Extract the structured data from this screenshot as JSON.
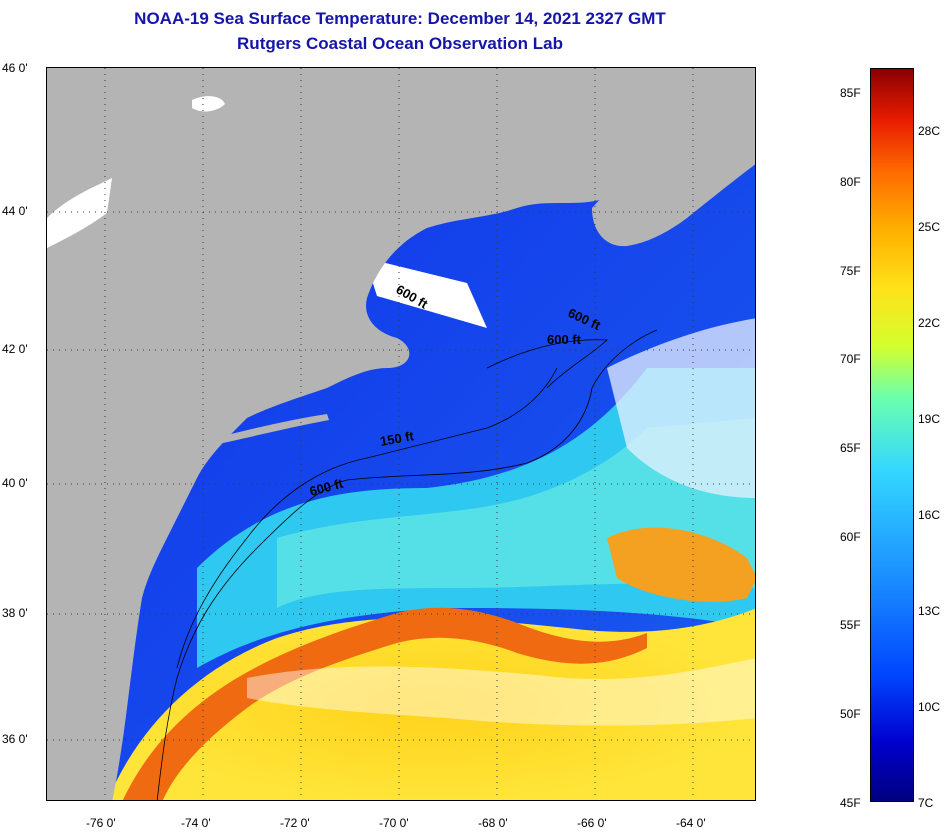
{
  "header": {
    "title": "NOAA-19 Sea Surface Temperature:  December 14, 2021 2327 GMT",
    "subtitle": "Rutgers Coastal Ocean Observation Lab"
  },
  "map": {
    "lat_labels": [
      "46 0'",
      "44 0'",
      "42 0'",
      "40 0'",
      "38 0'",
      "36 0'"
    ],
    "lon_labels": [
      "-76 0'",
      "-74 0'",
      "-72 0'",
      "-70 0'",
      "-68 0'",
      "-66 0'",
      "-64 0'"
    ],
    "contour_labels": [
      "600 ft",
      "600 ft",
      "600 ft",
      "150 ft",
      "600 ft"
    ],
    "colors": {
      "land": "#b4b4b4",
      "cloud": "#ffffff",
      "cold_water": "#0f2ae0",
      "gulf_stream": "#f06a12"
    }
  },
  "colorbar": {
    "fahrenheit": [
      "85F",
      "80F",
      "75F",
      "70F",
      "65F",
      "60F",
      "55F",
      "50F",
      "45F"
    ],
    "celsius": [
      "28C",
      "25C",
      "22C",
      "19C",
      "16C",
      "13C",
      "10C",
      "7C"
    ]
  }
}
